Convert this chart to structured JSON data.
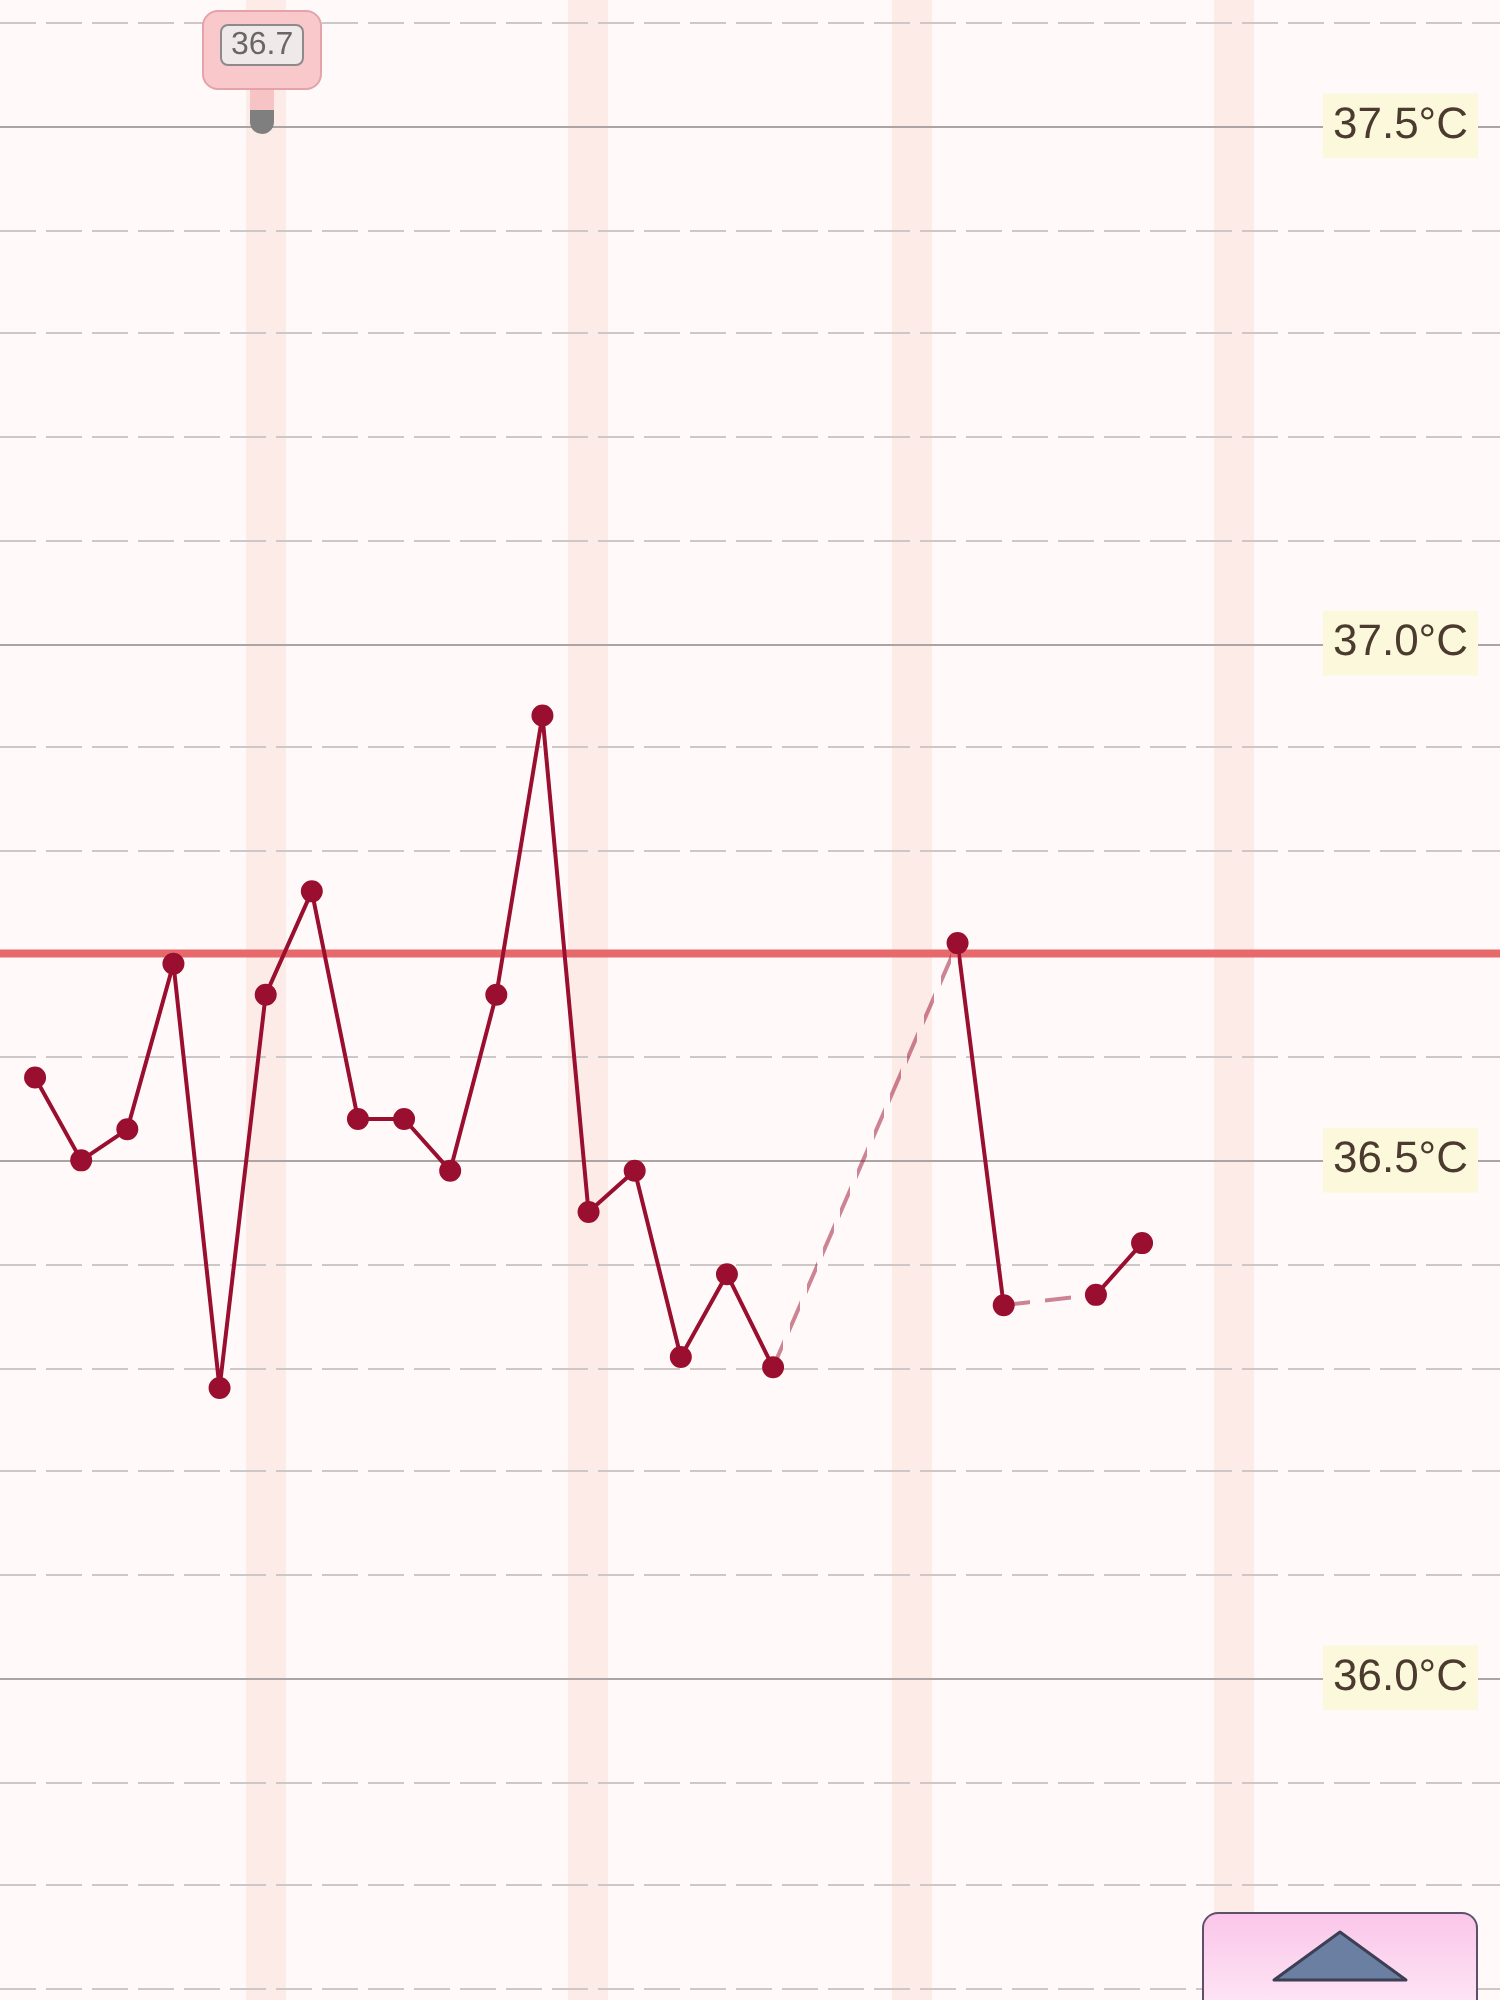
{
  "chart_data": {
    "type": "line",
    "categories": [
      null,
      null,
      null,
      null,
      null,
      null,
      null,
      null,
      null,
      null,
      null,
      null,
      null,
      null,
      null,
      null,
      null,
      null,
      null,
      null,
      null,
      null,
      null,
      null,
      null,
      null,
      null,
      null,
      null,
      null,
      null,
      null
    ],
    "series": [
      {
        "color": "#9a0f2f",
        "values": [
          36.58,
          36.5,
          36.53,
          36.69,
          36.28,
          36.66,
          36.76,
          36.54,
          36.54,
          36.49,
          36.66,
          36.93,
          36.45,
          36.49,
          36.31,
          36.39,
          36.3,
          null,
          null,
          null,
          36.71,
          36.36,
          null,
          36.37,
          36.42,
          null,
          null,
          null,
          null,
          null,
          null,
          null
        ]
      }
    ],
    "ylim": [
      35.7,
      37.61
    ],
    "yticks": [
      {
        "value": 35.7,
        "label": null
      },
      {
        "value": 35.8,
        "label": null
      },
      {
        "value": 35.9,
        "label": null
      },
      {
        "value": 36.0,
        "label": "36.0°C"
      },
      {
        "value": 36.1,
        "label": null
      },
      {
        "value": 36.2,
        "label": null
      },
      {
        "value": 36.3,
        "label": null
      },
      {
        "value": 36.4,
        "label": null
      },
      {
        "value": 36.5,
        "label": "36.5°C"
      },
      {
        "value": 36.6,
        "label": null
      },
      {
        "value": 36.7,
        "label": null
      },
      {
        "value": 36.8,
        "label": null
      },
      {
        "value": 36.9,
        "label": null
      },
      {
        "value": 37.0,
        "label": "37.0°C"
      },
      {
        "value": 37.1,
        "label": null
      },
      {
        "value": 37.2,
        "label": null
      },
      {
        "value": 37.3,
        "label": null
      },
      {
        "value": 37.4,
        "label": null
      },
      {
        "value": 37.5,
        "label": "37.5°C"
      },
      {
        "value": 37.6,
        "label": null
      }
    ],
    "grid": "y",
    "marker": "circle",
    "ref_lines": [
      {
        "axis": "y",
        "value": 36.7,
        "color": "#e8696b"
      }
    ],
    "annotations": [
      "36.7"
    ]
  }
}
